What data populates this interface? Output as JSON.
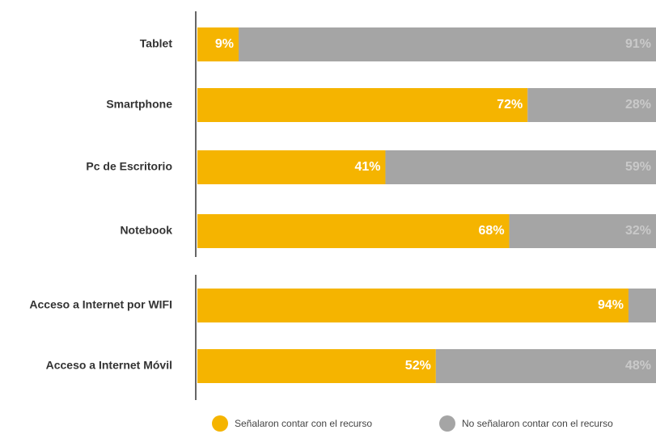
{
  "chart_data": {
    "type": "stacked-bar-horizontal",
    "categories": [
      "Tablet",
      "Smartphone",
      "Pc de Escritorio",
      "Notebook",
      "Acceso a Internet por WIFI",
      "Acceso a Internet Móvil"
    ],
    "series": [
      {
        "name": "Señalaron contar con el recurso",
        "color": "#f5b400",
        "label_color": "#ffffff",
        "values": [
          9,
          72,
          41,
          68,
          94,
          52
        ],
        "value_labels": [
          "9%",
          "72%",
          "41%",
          "68%",
          "94%",
          "52%"
        ]
      },
      {
        "name": "No señalaron contar con el recurso",
        "color": "#a5a5a5",
        "label_color": "#c9c9c9",
        "values": [
          91,
          28,
          59,
          32,
          6,
          48
        ],
        "value_labels": [
          "91%",
          "28%",
          "59%",
          "32%",
          null,
          "48%"
        ]
      }
    ]
  }
}
